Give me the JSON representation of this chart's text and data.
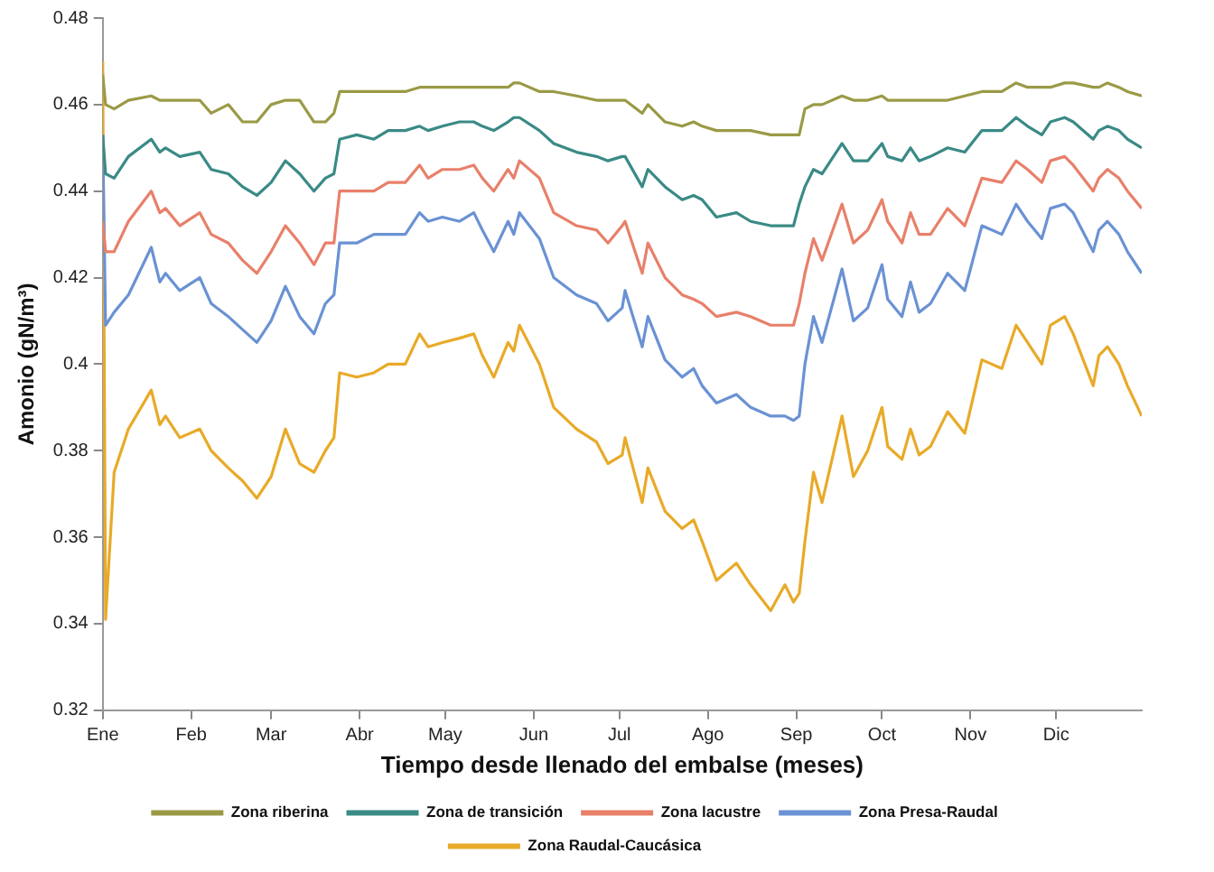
{
  "chart_data": {
    "type": "line",
    "xlabel": "Tiempo desde llenado del embalse (meses)",
    "ylabel": "Amonio (gN/m³)",
    "x": [
      "--01-01",
      "--01-02",
      "--01-05",
      "--01-10",
      "--01-18",
      "--01-21",
      "--01-23",
      "--01-28",
      "--02-04",
      "--02-08",
      "--02-14",
      "--02-19",
      "--02-24",
      "--03-01",
      "--03-06",
      "--03-11",
      "--03-16",
      "--03-20",
      "--03-23",
      "--03-25",
      "--03-31",
      "--04-06",
      "--04-11",
      "--04-17",
      "--04-22",
      "--04-25",
      "--04-30",
      "--05-06",
      "--05-11",
      "--05-14",
      "--05-18",
      "--05-23",
      "--05-25",
      "--05-27",
      "--06-03",
      "--06-08",
      "--06-16",
      "--06-23",
      "--06-27",
      "--07-02",
      "--07-03",
      "--07-09",
      "--07-11",
      "--07-17",
      "--07-23",
      "--07-27",
      "--07-30",
      "--08-04",
      "--08-11",
      "--08-16",
      "--08-23",
      "--08-28",
      "--08-31",
      "--09-02",
      "--09-04",
      "--09-07",
      "--09-10",
      "--09-17",
      "--09-21",
      "--09-26",
      "--10-01",
      "--10-03",
      "--10-08",
      "--10-11",
      "--10-14",
      "--10-18",
      "--10-24",
      "--10-30",
      "--11-05",
      "--11-12",
      "--11-17",
      "--11-21",
      "--11-26",
      "--11-29",
      "--12-04",
      "--12-07",
      "--12-14",
      "--12-16",
      "--12-19",
      "--12-23",
      "--12-26",
      "--12-31"
    ],
    "xlim": [
      "--01-01",
      "--12-31"
    ],
    "xticks": [
      {
        "value": "--01-01",
        "label": "Ene"
      },
      {
        "value": "--02-01",
        "label": "Feb"
      },
      {
        "value": "--03-01",
        "label": "Mar"
      },
      {
        "value": "--04-01",
        "label": "Abr"
      },
      {
        "value": "--05-01",
        "label": "May"
      },
      {
        "value": "--06-01",
        "label": "Jun"
      },
      {
        "value": "--07-01",
        "label": "Jul"
      },
      {
        "value": "--08-01",
        "label": "Ago"
      },
      {
        "value": "--09-01",
        "label": "Sep"
      },
      {
        "value": "--10-01",
        "label": "Oct"
      },
      {
        "value": "--11-01",
        "label": "Nov"
      },
      {
        "value": "--12-01",
        "label": "Dic"
      }
    ],
    "ylim": [
      0.32,
      0.48
    ],
    "yticks": [
      0.32,
      0.34,
      0.36,
      0.38,
      0.4,
      0.42,
      0.44,
      0.46,
      0.48
    ],
    "legend": "bottom",
    "series": [
      {
        "name": "Zona riberina",
        "color": "#9a9a46",
        "values": [
          0.467,
          0.46,
          0.459,
          0.461,
          0.462,
          0.461,
          0.461,
          0.461,
          0.461,
          0.458,
          0.46,
          0.456,
          0.456,
          0.46,
          0.461,
          0.461,
          0.456,
          0.456,
          0.458,
          0.463,
          0.463,
          0.463,
          0.463,
          0.463,
          0.464,
          0.464,
          0.464,
          0.464,
          0.464,
          0.464,
          0.464,
          0.464,
          0.465,
          0.465,
          0.463,
          0.463,
          0.462,
          0.461,
          0.461,
          0.461,
          0.461,
          0.458,
          0.46,
          0.456,
          0.455,
          0.456,
          0.455,
          0.454,
          0.454,
          0.454,
          0.453,
          0.453,
          0.453,
          0.453,
          0.459,
          0.46,
          0.46,
          0.462,
          0.461,
          0.461,
          0.462,
          0.461,
          0.461,
          0.461,
          0.461,
          0.461,
          0.461,
          0.462,
          0.463,
          0.463,
          0.465,
          0.464,
          0.464,
          0.464,
          0.465,
          0.465,
          0.464,
          0.464,
          0.465,
          0.464,
          0.463,
          0.462
        ]
      },
      {
        "name": "Zona de transición",
        "color": "#3a8a86",
        "values": [
          0.453,
          0.444,
          0.443,
          0.448,
          0.452,
          0.449,
          0.45,
          0.448,
          0.449,
          0.445,
          0.444,
          0.441,
          0.439,
          0.442,
          0.447,
          0.444,
          0.44,
          0.443,
          0.444,
          0.452,
          0.453,
          0.452,
          0.454,
          0.454,
          0.455,
          0.454,
          0.455,
          0.456,
          0.456,
          0.455,
          0.454,
          0.456,
          0.457,
          0.457,
          0.454,
          0.451,
          0.449,
          0.448,
          0.447,
          0.448,
          0.448,
          0.441,
          0.445,
          0.441,
          0.438,
          0.439,
          0.438,
          0.434,
          0.435,
          0.433,
          0.432,
          0.432,
          0.432,
          0.437,
          0.441,
          0.445,
          0.444,
          0.451,
          0.447,
          0.447,
          0.451,
          0.448,
          0.447,
          0.45,
          0.447,
          0.448,
          0.45,
          0.449,
          0.454,
          0.454,
          0.457,
          0.455,
          0.453,
          0.456,
          0.457,
          0.456,
          0.452,
          0.454,
          0.455,
          0.454,
          0.452,
          0.45
        ]
      },
      {
        "name": "Zona lacustre",
        "color": "#e8806a",
        "values": [
          0.433,
          0.426,
          0.426,
          0.433,
          0.44,
          0.435,
          0.436,
          0.432,
          0.435,
          0.43,
          0.428,
          0.424,
          0.421,
          0.426,
          0.432,
          0.428,
          0.423,
          0.428,
          0.428,
          0.44,
          0.44,
          0.44,
          0.442,
          0.442,
          0.446,
          0.443,
          0.445,
          0.445,
          0.446,
          0.443,
          0.44,
          0.445,
          0.443,
          0.447,
          0.443,
          0.435,
          0.432,
          0.431,
          0.428,
          0.432,
          0.433,
          0.421,
          0.428,
          0.42,
          0.416,
          0.415,
          0.414,
          0.411,
          0.412,
          0.411,
          0.409,
          0.409,
          0.409,
          0.414,
          0.421,
          0.429,
          0.424,
          0.437,
          0.428,
          0.431,
          0.438,
          0.433,
          0.428,
          0.435,
          0.43,
          0.43,
          0.436,
          0.432,
          0.443,
          0.442,
          0.447,
          0.445,
          0.442,
          0.447,
          0.448,
          0.446,
          0.44,
          0.443,
          0.445,
          0.443,
          0.44,
          0.436
        ]
      },
      {
        "name": "Zona Presa-Raudal",
        "color": "#6a92d4",
        "values": [
          0.453,
          0.409,
          0.412,
          0.416,
          0.427,
          0.419,
          0.421,
          0.417,
          0.42,
          0.414,
          0.411,
          0.408,
          0.405,
          0.41,
          0.418,
          0.411,
          0.407,
          0.414,
          0.416,
          0.428,
          0.428,
          0.43,
          0.43,
          0.43,
          0.435,
          0.433,
          0.434,
          0.433,
          0.435,
          0.431,
          0.426,
          0.433,
          0.43,
          0.435,
          0.429,
          0.42,
          0.416,
          0.414,
          0.41,
          0.413,
          0.417,
          0.404,
          0.411,
          0.401,
          0.397,
          0.399,
          0.395,
          0.391,
          0.393,
          0.39,
          0.388,
          0.388,
          0.387,
          0.388,
          0.4,
          0.411,
          0.405,
          0.422,
          0.41,
          0.413,
          0.423,
          0.415,
          0.411,
          0.419,
          0.412,
          0.414,
          0.421,
          0.417,
          0.432,
          0.43,
          0.437,
          0.433,
          0.429,
          0.436,
          0.437,
          0.435,
          0.426,
          0.431,
          0.433,
          0.43,
          0.426,
          0.421
        ]
      },
      {
        "name": "Zona Raudal-Caucásica",
        "color": "#e8aa28",
        "values": [
          0.47,
          0.341,
          0.375,
          0.385,
          0.394,
          0.386,
          0.388,
          0.383,
          0.385,
          0.38,
          0.376,
          0.373,
          0.369,
          0.374,
          0.385,
          0.377,
          0.375,
          0.38,
          0.383,
          0.398,
          0.397,
          0.398,
          0.4,
          0.4,
          0.407,
          0.404,
          0.405,
          0.406,
          0.407,
          0.402,
          0.397,
          0.405,
          0.403,
          0.409,
          0.4,
          0.39,
          0.385,
          0.382,
          0.377,
          0.379,
          0.383,
          0.368,
          0.376,
          0.366,
          0.362,
          0.364,
          0.359,
          0.35,
          0.354,
          0.349,
          0.343,
          0.349,
          0.345,
          0.347,
          0.359,
          0.375,
          0.368,
          0.388,
          0.374,
          0.38,
          0.39,
          0.381,
          0.378,
          0.385,
          0.379,
          0.381,
          0.389,
          0.384,
          0.401,
          0.399,
          0.409,
          0.405,
          0.4,
          0.409,
          0.411,
          0.407,
          0.395,
          0.402,
          0.404,
          0.4,
          0.395,
          0.388
        ]
      }
    ]
  }
}
